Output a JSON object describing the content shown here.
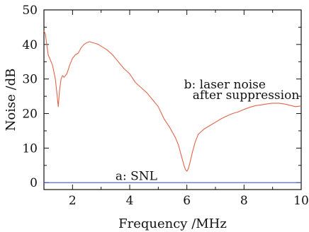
{
  "chart_data": {
    "type": "line",
    "title": "",
    "xlabel": "Frequency /MHz",
    "ylabel": "Noise /dB",
    "xlim": [
      1,
      10
    ],
    "ylim": [
      -2,
      50
    ],
    "xticks": [
      2,
      4,
      6,
      8,
      10
    ],
    "yticks": [
      0,
      10,
      20,
      30,
      40,
      50
    ],
    "grid": false,
    "series": [
      {
        "name": "a: SNL",
        "color": "#3a5bd9",
        "x": [
          1,
          10
        ],
        "y": [
          0,
          0
        ]
      },
      {
        "name": "b: laser noise after suppression",
        "color": "#e0654a",
        "x": [
          1.0,
          1.05,
          1.1,
          1.15,
          1.2,
          1.25,
          1.3,
          1.35,
          1.4,
          1.45,
          1.5,
          1.55,
          1.6,
          1.65,
          1.7,
          1.8,
          1.9,
          2.0,
          2.1,
          2.2,
          2.3,
          2.4,
          2.5,
          2.6,
          2.7,
          2.8,
          2.9,
          3.0,
          3.2,
          3.4,
          3.6,
          3.8,
          4.0,
          4.2,
          4.4,
          4.6,
          4.8,
          5.0,
          5.2,
          5.4,
          5.6,
          5.7,
          5.8,
          5.9,
          5.95,
          6.0,
          6.05,
          6.1,
          6.2,
          6.3,
          6.4,
          6.6,
          6.8,
          7.0,
          7.2,
          7.4,
          7.6,
          7.8,
          8.0,
          8.2,
          8.4,
          8.6,
          8.8,
          9.0,
          9.2,
          9.4,
          9.6,
          9.8,
          10.0
        ],
        "y": [
          44,
          43,
          40,
          37,
          36,
          35,
          34,
          32,
          30,
          26,
          22,
          27,
          30,
          31,
          30.5,
          31.5,
          34,
          36,
          37,
          37.5,
          39,
          40,
          40.5,
          40.8,
          40.5,
          40.3,
          40,
          39.5,
          38.5,
          37,
          35,
          33,
          31.5,
          29,
          27.5,
          26,
          24,
          22,
          18.5,
          16,
          13,
          11,
          8,
          5,
          3.8,
          3.3,
          4,
          5.5,
          9,
          12,
          14,
          15.5,
          16.5,
          17.5,
          18.5,
          19.3,
          20,
          20.5,
          21.2,
          21.8,
          22.3,
          22.5,
          22.8,
          23,
          23,
          22.8,
          22.4,
          22,
          22.2
        ]
      }
    ],
    "annotations": [
      {
        "text": "b: laser noise",
        "x": 5.9,
        "y": 27.3
      },
      {
        "text": "after suppression",
        "x": 6.2,
        "y": 24.2
      },
      {
        "text": "a: SNL",
        "x": 3.5,
        "y": 0.8
      }
    ]
  }
}
